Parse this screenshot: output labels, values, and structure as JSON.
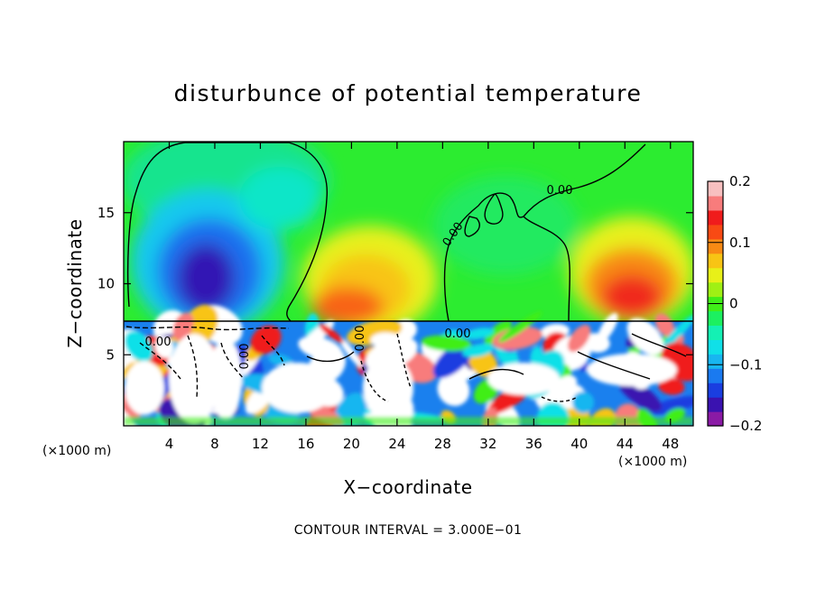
{
  "chart_data": {
    "type": "heatmap",
    "title": "disturbunce of potential temperature",
    "xlabel": "X−coordinate",
    "ylabel": "Z−coordinate",
    "x_unit_left": "(×1000 m)",
    "x_unit_right": "(×1000 m)",
    "xlim": [
      0,
      50
    ],
    "ylim": [
      0,
      20
    ],
    "x_ticks": [
      4,
      8,
      12,
      16,
      20,
      24,
      28,
      32,
      36,
      40,
      44,
      48
    ],
    "x_tick_labels": [
      "4",
      "8",
      "12",
      "16",
      "20",
      "24",
      "28",
      "32",
      "36",
      "40",
      "44",
      "48"
    ],
    "y_ticks": [
      5,
      10,
      15
    ],
    "y_tick_labels": [
      "5",
      "10",
      "15"
    ],
    "colorbar": {
      "range": [
        -0.2,
        0.2
      ],
      "ticks": [
        0.2,
        0.1,
        0,
        -0.1,
        -0.2
      ],
      "tick_labels": [
        "0.2",
        "0.1",
        "0",
        "−0.1",
        "−0.2"
      ],
      "colors": [
        "#8a1aa5",
        "#3a12b0",
        "#1a3ee0",
        "#1a7af0",
        "#18b6f0",
        "#10e0e8",
        "#14f0b4",
        "#1cf060",
        "#40ee18",
        "#a0f014",
        "#e8f018",
        "#f8c414",
        "#f88a14",
        "#f84a14",
        "#f01c1c",
        "#f87c7c",
        "#f8c0c0"
      ]
    },
    "contour_labels": [
      "0.00",
      "0.00",
      "0.00",
      "0.00",
      "0.00",
      "0.00"
    ],
    "footer": "CONTOUR INTERVAL = 3.000E−01"
  }
}
